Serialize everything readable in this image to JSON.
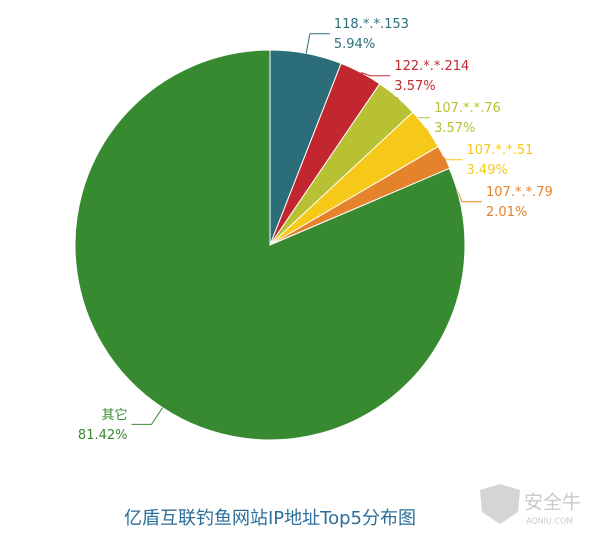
{
  "chart_data": {
    "type": "pie",
    "title": "亿盾互联钓鱼网站IP地址Top5分布图",
    "categories": [
      "118.*.*.153",
      "122.*.*.214",
      "107.*.*.76",
      "107.*.*.51",
      "107.*.*.79",
      "其它"
    ],
    "values": [
      5.94,
      3.57,
      3.57,
      3.49,
      2.01,
      81.42
    ],
    "value_labels": [
      "5.94%",
      "3.57%",
      "3.57%",
      "3.49%",
      "2.01%",
      "81.42%"
    ],
    "colors": [
      "#2b6e7a",
      "#c2272f",
      "#b8c034",
      "#f6c817",
      "#e5822c",
      "#388a31"
    ],
    "watermark": {
      "text": "安全牛",
      "subtext": "AQNIU.COM"
    }
  }
}
